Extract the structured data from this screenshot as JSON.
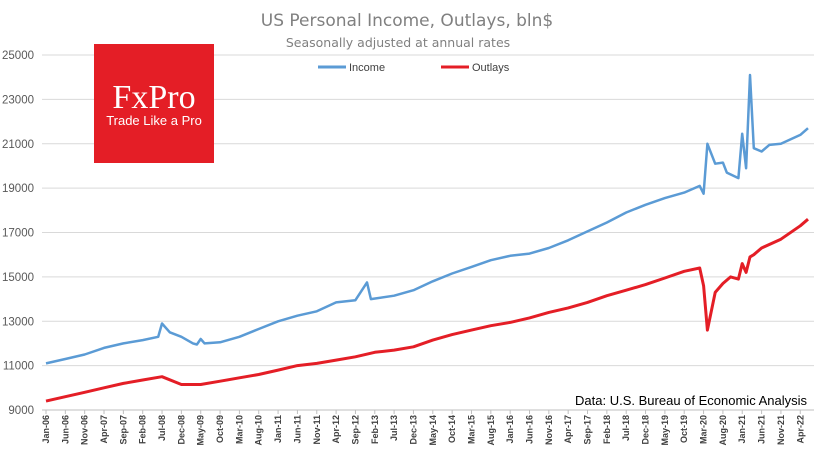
{
  "title": "US Personal Income, Outlays, bln$",
  "subtitle": "Seasonally adjusted at annual rates",
  "source": "Data: U.S. Bureau of Economic Analysis",
  "logo": {
    "brand": "FxPro",
    "tagline": "Trade Like a Pro",
    "color": "#e41e26"
  },
  "chart_data": {
    "type": "line",
    "ylim": [
      9000,
      25000
    ],
    "yticks": [
      "9000",
      "11000",
      "13000",
      "15000",
      "17000",
      "19000",
      "21000",
      "23000",
      "25000"
    ],
    "grid": "horizontal",
    "legend_position": "top-center",
    "x_ticks": [
      "Jan-06",
      "Jun-06",
      "Nov-06",
      "Apr-07",
      "Sep-07",
      "Feb-08",
      "Jul-08",
      "Dec-08",
      "May-09",
      "Oct-09",
      "Mar-10",
      "Aug-10",
      "Jan-11",
      "Jun-11",
      "Nov-11",
      "Apr-12",
      "Sep-12",
      "Feb-13",
      "Jul-13",
      "Dec-13",
      "May-14",
      "Oct-14",
      "Mar-15",
      "Aug-15",
      "Jan-16",
      "Jun-16",
      "Nov-16",
      "Apr-17",
      "Sep-17",
      "Feb-18",
      "Jul-18",
      "Dec-18",
      "May-19",
      "Oct-19",
      "Mar-20",
      "Aug-20",
      "Jan-21",
      "Jun-21",
      "Nov-21",
      "Apr-22"
    ],
    "x_range": [
      "Jan-06",
      "Jun-22"
    ],
    "series": [
      {
        "name": "Income",
        "color": "#5b9bd5",
        "points": [
          [
            "Jan-06",
            11100
          ],
          [
            "Jun-06",
            11300
          ],
          [
            "Nov-06",
            11500
          ],
          [
            "Apr-07",
            11800
          ],
          [
            "Sep-07",
            12000
          ],
          [
            "Feb-08",
            12150
          ],
          [
            "Jun-08",
            12300
          ],
          [
            "Jul-08",
            12900
          ],
          [
            "Sep-08",
            12500
          ],
          [
            "Dec-08",
            12300
          ],
          [
            "Mar-09",
            12000
          ],
          [
            "Apr-09",
            11950
          ],
          [
            "May-09",
            12200
          ],
          [
            "Jun-09",
            12000
          ],
          [
            "Oct-09",
            12050
          ],
          [
            "Mar-10",
            12300
          ],
          [
            "Aug-10",
            12650
          ],
          [
            "Jan-11",
            13000
          ],
          [
            "Jun-11",
            13250
          ],
          [
            "Nov-11",
            13450
          ],
          [
            "Apr-12",
            13850
          ],
          [
            "Sep-12",
            13950
          ],
          [
            "Dec-12",
            14750
          ],
          [
            "Jan-13",
            14000
          ],
          [
            "Jul-13",
            14150
          ],
          [
            "Dec-13",
            14400
          ],
          [
            "May-14",
            14800
          ],
          [
            "Oct-14",
            15150
          ],
          [
            "Mar-15",
            15450
          ],
          [
            "Aug-15",
            15750
          ],
          [
            "Jan-16",
            15950
          ],
          [
            "Jun-16",
            16050
          ],
          [
            "Nov-16",
            16300
          ],
          [
            "Apr-17",
            16650
          ],
          [
            "Sep-17",
            17050
          ],
          [
            "Feb-18",
            17450
          ],
          [
            "Jul-18",
            17900
          ],
          [
            "Dec-18",
            18250
          ],
          [
            "May-19",
            18550
          ],
          [
            "Oct-19",
            18800
          ],
          [
            "Feb-20",
            19100
          ],
          [
            "Mar-20",
            18750
          ],
          [
            "Apr-20",
            21000
          ],
          [
            "Jun-20",
            20100
          ],
          [
            "Aug-20",
            20150
          ],
          [
            "Sep-20",
            19700
          ],
          [
            "Dec-20",
            19450
          ],
          [
            "Jan-21",
            21450
          ],
          [
            "Feb-21",
            19900
          ],
          [
            "Mar-21",
            24100
          ],
          [
            "Apr-21",
            20800
          ],
          [
            "Jun-21",
            20650
          ],
          [
            "Aug-21",
            20950
          ],
          [
            "Nov-21",
            21000
          ],
          [
            "Apr-22",
            21400
          ],
          [
            "Jun-22",
            21700
          ]
        ]
      },
      {
        "name": "Outlays",
        "color": "#e41e26",
        "points": [
          [
            "Jan-06",
            9400
          ],
          [
            "Jun-06",
            9600
          ],
          [
            "Nov-06",
            9800
          ],
          [
            "Apr-07",
            10000
          ],
          [
            "Sep-07",
            10200
          ],
          [
            "Feb-08",
            10350
          ],
          [
            "Jul-08",
            10500
          ],
          [
            "Dec-08",
            10150
          ],
          [
            "May-09",
            10150
          ],
          [
            "Oct-09",
            10300
          ],
          [
            "Mar-10",
            10450
          ],
          [
            "Aug-10",
            10600
          ],
          [
            "Jan-11",
            10800
          ],
          [
            "Jun-11",
            11000
          ],
          [
            "Nov-11",
            11100
          ],
          [
            "Apr-12",
            11250
          ],
          [
            "Sep-12",
            11400
          ],
          [
            "Feb-13",
            11600
          ],
          [
            "Jul-13",
            11700
          ],
          [
            "Dec-13",
            11850
          ],
          [
            "May-14",
            12150
          ],
          [
            "Oct-14",
            12400
          ],
          [
            "Mar-15",
            12600
          ],
          [
            "Aug-15",
            12800
          ],
          [
            "Jan-16",
            12950
          ],
          [
            "Jun-16",
            13150
          ],
          [
            "Nov-16",
            13400
          ],
          [
            "Apr-17",
            13600
          ],
          [
            "Sep-17",
            13850
          ],
          [
            "Feb-18",
            14150
          ],
          [
            "Jul-18",
            14400
          ],
          [
            "Dec-18",
            14650
          ],
          [
            "May-19",
            14950
          ],
          [
            "Oct-19",
            15250
          ],
          [
            "Feb-20",
            15400
          ],
          [
            "Mar-20",
            14600
          ],
          [
            "Apr-20",
            12600
          ],
          [
            "Jun-20",
            14300
          ],
          [
            "Aug-20",
            14700
          ],
          [
            "Oct-20",
            15000
          ],
          [
            "Dec-20",
            14900
          ],
          [
            "Jan-21",
            15600
          ],
          [
            "Feb-21",
            15200
          ],
          [
            "Mar-21",
            15900
          ],
          [
            "Apr-21",
            16000
          ],
          [
            "Jun-21",
            16300
          ],
          [
            "Nov-21",
            16700
          ],
          [
            "Apr-22",
            17300
          ],
          [
            "Jun-22",
            17600
          ]
        ]
      }
    ]
  }
}
